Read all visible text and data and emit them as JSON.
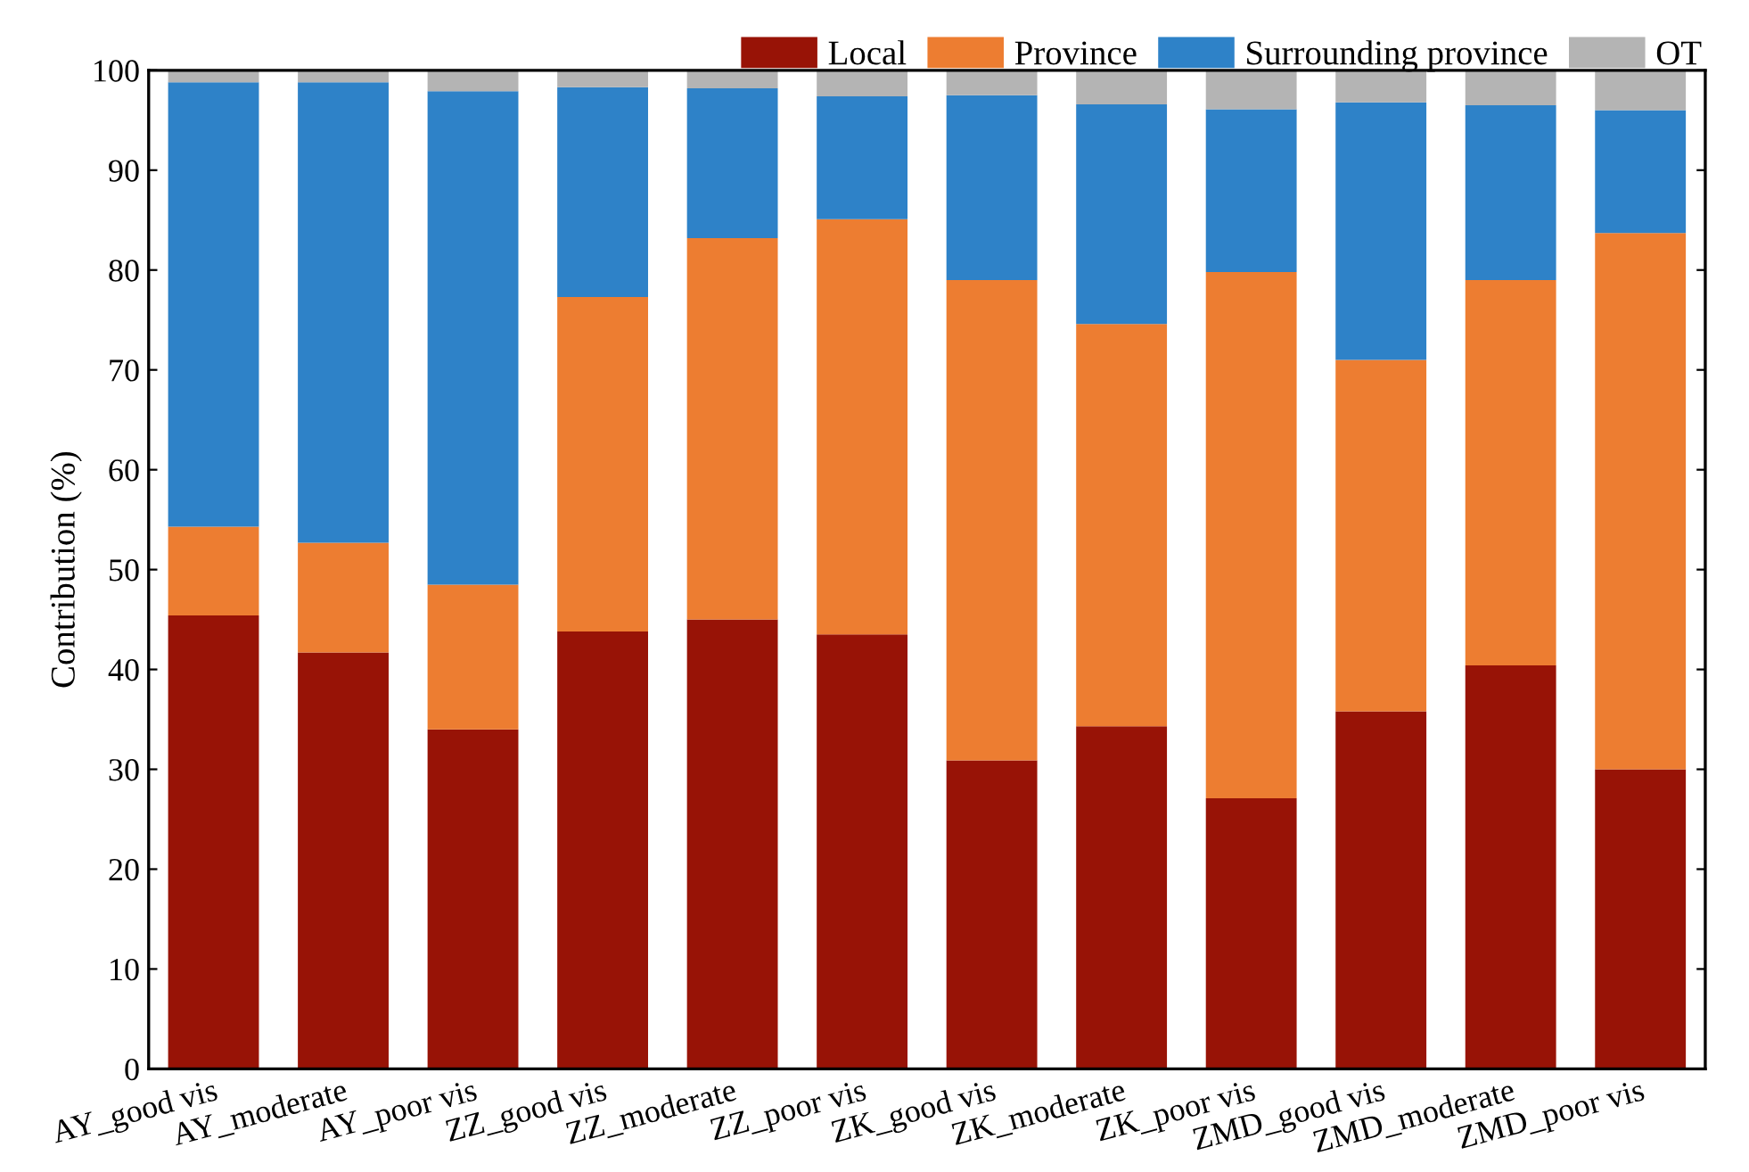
{
  "chart_data": {
    "type": "bar",
    "stacked": true,
    "ylabel": "Contribution (%)",
    "categories": [
      "AY_good vis",
      "AY_moderate",
      "AY_poor vis",
      "ZZ_good vis",
      "ZZ_moderate",
      "ZZ_poor vis",
      "ZK_good vis",
      "ZK_moderate",
      "ZK_poor vis",
      "ZMD_good vis",
      "ZMD_moderate",
      "ZMD_poor vis"
    ],
    "series": [
      {
        "name": "Local",
        "color": "#981306",
        "values": [
          45.4,
          41.7,
          34.0,
          43.8,
          45.0,
          43.5,
          30.9,
          34.3,
          27.1,
          35.8,
          40.4,
          30.0
        ]
      },
      {
        "name": "Province",
        "color": "#ed7d31",
        "values": [
          8.9,
          11.0,
          14.5,
          33.5,
          38.2,
          41.6,
          48.1,
          40.3,
          52.7,
          35.2,
          38.6,
          53.7
        ]
      },
      {
        "name": "Surrounding province",
        "color": "#2e82c8",
        "values": [
          44.5,
          46.1,
          49.4,
          21.0,
          15.0,
          12.3,
          18.5,
          22.0,
          16.3,
          25.8,
          17.5,
          12.3
        ]
      },
      {
        "name": "OT",
        "color": "#b4b4b4",
        "values": [
          1.2,
          1.2,
          2.1,
          1.7,
          1.8,
          2.6,
          2.5,
          3.4,
          3.9,
          3.2,
          3.5,
          4.0
        ]
      }
    ],
    "ylim": [
      0,
      100
    ],
    "yticks": [
      0,
      10,
      20,
      30,
      40,
      50,
      60,
      70,
      80,
      90,
      100
    ],
    "grid": false,
    "legend": "top right"
  }
}
